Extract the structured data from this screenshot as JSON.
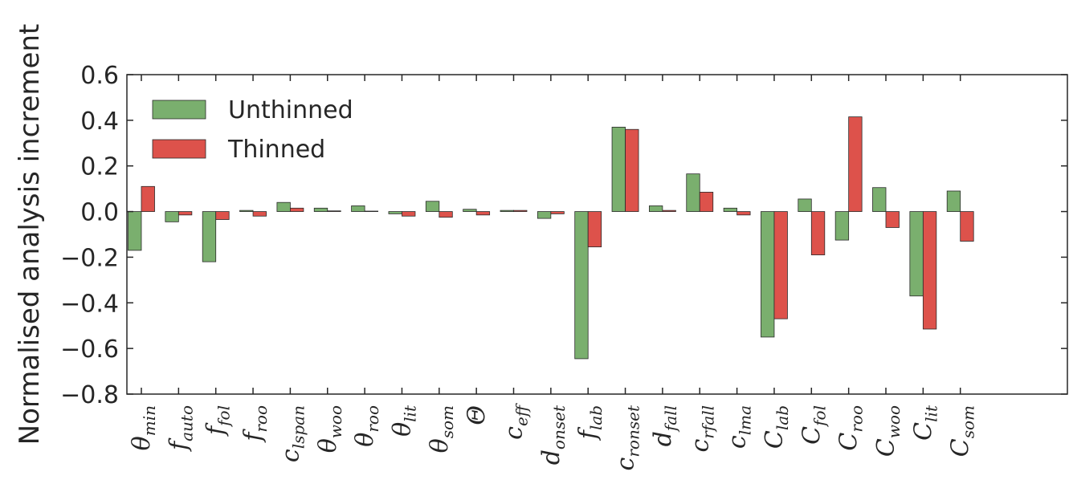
{
  "chart_data": {
    "type": "bar",
    "ylabel": "Normalised analysis increment",
    "xlabel": "",
    "ylim": [
      -0.8,
      0.6
    ],
    "yticks": [
      "0.6",
      "0.4",
      "0.2",
      "0.0",
      "−0.2",
      "−0.4",
      "−0.6",
      "−0.8"
    ],
    "grid": false,
    "legend_position": "top-left",
    "categories": [
      {
        "base": "θ",
        "sub": "min"
      },
      {
        "base": "f",
        "sub": "auto"
      },
      {
        "base": "f",
        "sub": "fol"
      },
      {
        "base": "f",
        "sub": "roo"
      },
      {
        "base": "c",
        "sub": "lspan"
      },
      {
        "base": "θ",
        "sub": "woo"
      },
      {
        "base": "θ",
        "sub": "roo"
      },
      {
        "base": "θ",
        "sub": "lit"
      },
      {
        "base": "θ",
        "sub": "som"
      },
      {
        "base": "Θ",
        "sub": ""
      },
      {
        "base": "c",
        "sub": "eff"
      },
      {
        "base": "d",
        "sub": "onset"
      },
      {
        "base": "f",
        "sub": "lab"
      },
      {
        "base": "c",
        "sub": "ronset"
      },
      {
        "base": "d",
        "sub": "fall"
      },
      {
        "base": "c",
        "sub": "rfall"
      },
      {
        "base": "c",
        "sub": "lma"
      },
      {
        "base": "C",
        "sub": "lab"
      },
      {
        "base": "C",
        "sub": "fol"
      },
      {
        "base": "C",
        "sub": "roo"
      },
      {
        "base": "C",
        "sub": "woo"
      },
      {
        "base": "C",
        "sub": "lit"
      },
      {
        "base": "C",
        "sub": "som"
      }
    ],
    "series": [
      {
        "name": "Unthinned",
        "color": "#7aaf6e",
        "values": [
          -0.17,
          -0.045,
          -0.22,
          0.005,
          0.04,
          0.015,
          0.025,
          -0.01,
          0.045,
          0.01,
          0.005,
          -0.03,
          -0.645,
          0.37,
          0.025,
          0.165,
          0.015,
          -0.55,
          0.055,
          -0.125,
          0.105,
          -0.37,
          0.09
        ]
      },
      {
        "name": "Thinned",
        "color": "#dd524b",
        "values": [
          0.11,
          -0.015,
          -0.035,
          -0.02,
          0.015,
          0.003,
          0.002,
          -0.02,
          -0.025,
          -0.015,
          0.005,
          -0.01,
          -0.155,
          0.36,
          0.005,
          0.085,
          -0.015,
          -0.47,
          -0.19,
          0.415,
          -0.07,
          -0.515,
          -0.13
        ]
      }
    ]
  }
}
